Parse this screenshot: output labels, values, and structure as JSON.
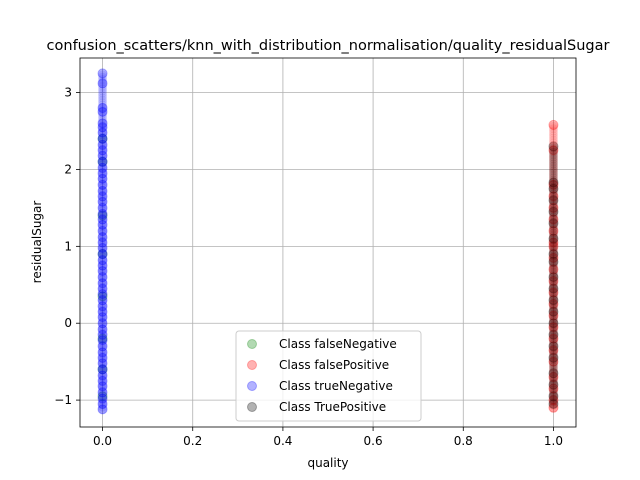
{
  "chart_data": {
    "type": "scatter",
    "title": "confusion_scatters/knn_with_distribution_normalisation/quality_residualSugar",
    "xlabel": "quality",
    "ylabel": "residualSugar",
    "xlim": [
      -0.05,
      1.05
    ],
    "ylim": [
      -1.35,
      3.45
    ],
    "x_ticks": [
      0.0,
      0.2,
      0.4,
      0.6,
      0.8,
      1.0
    ],
    "x_tick_labels": [
      "0.0",
      "0.2",
      "0.4",
      "0.6",
      "0.8",
      "1.0"
    ],
    "y_ticks": [
      -1,
      0,
      1,
      2,
      3
    ],
    "y_tick_labels": [
      "−1",
      "0",
      "1",
      "2",
      "3"
    ],
    "grid": true,
    "legend_position": "lower-center",
    "series": [
      {
        "name": "Class falseNegative",
        "color": "#008000",
        "opacity": 0.3,
        "points": [
          [
            0,
            -0.95
          ],
          [
            0,
            -0.6
          ],
          [
            0,
            -0.2
          ],
          [
            0,
            0.35
          ],
          [
            0,
            0.9
          ],
          [
            0,
            1.4
          ],
          [
            0,
            2.1
          ],
          [
            0,
            2.4
          ]
        ]
      },
      {
        "name": "Class falsePositive",
        "color": "#ff0000",
        "opacity": 0.3,
        "points": [
          [
            1,
            -1.1
          ],
          [
            1,
            -1.0
          ],
          [
            1,
            -0.85
          ],
          [
            1,
            -0.7
          ],
          [
            1,
            -0.5
          ],
          [
            1,
            -0.35
          ],
          [
            1,
            -0.2
          ],
          [
            1,
            -0.05
          ],
          [
            1,
            0.1
          ],
          [
            1,
            0.25
          ],
          [
            1,
            0.4
          ],
          [
            1,
            0.55
          ],
          [
            1,
            0.7
          ],
          [
            1,
            0.85
          ],
          [
            1,
            1.0
          ],
          [
            1,
            1.05
          ],
          [
            1,
            1.2
          ],
          [
            1,
            1.35
          ],
          [
            1,
            1.5
          ],
          [
            1,
            1.65
          ],
          [
            1,
            1.8
          ],
          [
            1,
            2.25
          ],
          [
            1,
            2.58
          ]
        ]
      },
      {
        "name": "Class trueNegative",
        "color": "#0000ff",
        "opacity": 0.3,
        "points": [
          [
            0,
            -1.12
          ],
          [
            0,
            -1.05
          ],
          [
            0,
            -0.98
          ],
          [
            0,
            -0.9
          ],
          [
            0,
            -0.82
          ],
          [
            0,
            -0.75
          ],
          [
            0,
            -0.68
          ],
          [
            0,
            -0.6
          ],
          [
            0,
            -0.52
          ],
          [
            0,
            -0.45
          ],
          [
            0,
            -0.38
          ],
          [
            0,
            -0.3
          ],
          [
            0,
            -0.22
          ],
          [
            0,
            -0.15
          ],
          [
            0,
            -0.08
          ],
          [
            0,
            0.0
          ],
          [
            0,
            0.08
          ],
          [
            0,
            0.15
          ],
          [
            0,
            0.22
          ],
          [
            0,
            0.3
          ],
          [
            0,
            0.38
          ],
          [
            0,
            0.45
          ],
          [
            0,
            0.52
          ],
          [
            0,
            0.6
          ],
          [
            0,
            0.68
          ],
          [
            0,
            0.75
          ],
          [
            0,
            0.82
          ],
          [
            0,
            0.9
          ],
          [
            0,
            0.98
          ],
          [
            0,
            1.05
          ],
          [
            0,
            1.12
          ],
          [
            0,
            1.2
          ],
          [
            0,
            1.28
          ],
          [
            0,
            1.35
          ],
          [
            0,
            1.42
          ],
          [
            0,
            1.5
          ],
          [
            0,
            1.58
          ],
          [
            0,
            1.65
          ],
          [
            0,
            1.72
          ],
          [
            0,
            1.8
          ],
          [
            0,
            1.88
          ],
          [
            0,
            1.95
          ],
          [
            0,
            2.02
          ],
          [
            0,
            2.1
          ],
          [
            0,
            2.18
          ],
          [
            0,
            2.25
          ],
          [
            0,
            2.32
          ],
          [
            0,
            2.4
          ],
          [
            0,
            2.48
          ],
          [
            0,
            2.55
          ],
          [
            0,
            2.6
          ],
          [
            0,
            2.75
          ],
          [
            0,
            2.8
          ],
          [
            0,
            3.12
          ],
          [
            0,
            3.25
          ]
        ]
      },
      {
        "name": "Class TruePositive",
        "color": "#000000",
        "opacity": 0.3,
        "points": [
          [
            1,
            -1.05
          ],
          [
            1,
            -0.95
          ],
          [
            1,
            -0.8
          ],
          [
            1,
            -0.65
          ],
          [
            1,
            -0.45
          ],
          [
            1,
            -0.3
          ],
          [
            1,
            -0.15
          ],
          [
            1,
            0.0
          ],
          [
            1,
            0.15
          ],
          [
            1,
            0.3
          ],
          [
            1,
            0.45
          ],
          [
            1,
            0.6
          ],
          [
            1,
            0.8
          ],
          [
            1,
            0.9
          ],
          [
            1,
            1.1
          ],
          [
            1,
            1.3
          ],
          [
            1,
            1.45
          ],
          [
            1,
            1.6
          ],
          [
            1,
            1.75
          ],
          [
            1,
            1.83
          ],
          [
            1,
            2.3
          ]
        ]
      }
    ]
  }
}
